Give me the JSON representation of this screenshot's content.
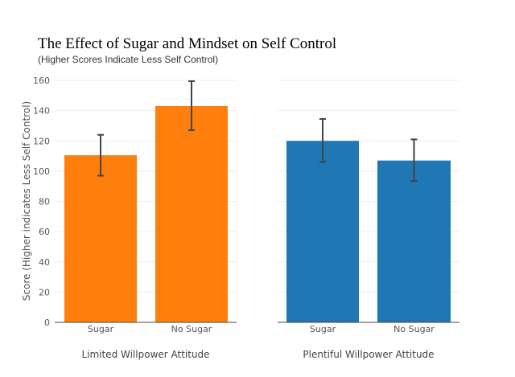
{
  "chart_data": {
    "type": "bar",
    "title": "The Effect of Sugar and Mindset on Self Control",
    "subtitle": "(Higher Scores Indicate Less Self Control)",
    "ylabel": "Score (Higher indicates Less Self Control)",
    "ylim": [
      0,
      160
    ],
    "yticks": [
      0,
      20,
      40,
      60,
      80,
      100,
      120,
      140,
      160
    ],
    "grid": true,
    "panels": [
      {
        "xlabel": "Limited Willpower Attitude",
        "categories": [
          "Sugar",
          "No Sugar"
        ],
        "values": [
          110.5,
          143
        ],
        "error_low": [
          97,
          127
        ],
        "error_high": [
          124,
          159.5
        ],
        "color": "#ff7f0e"
      },
      {
        "xlabel": "Plentiful Willpower Attitude",
        "categories": [
          "Sugar",
          "No Sugar"
        ],
        "values": [
          120,
          107
        ],
        "error_low": [
          106,
          93.5
        ],
        "error_high": [
          134.5,
          121
        ],
        "color": "#1f77b4"
      }
    ]
  }
}
